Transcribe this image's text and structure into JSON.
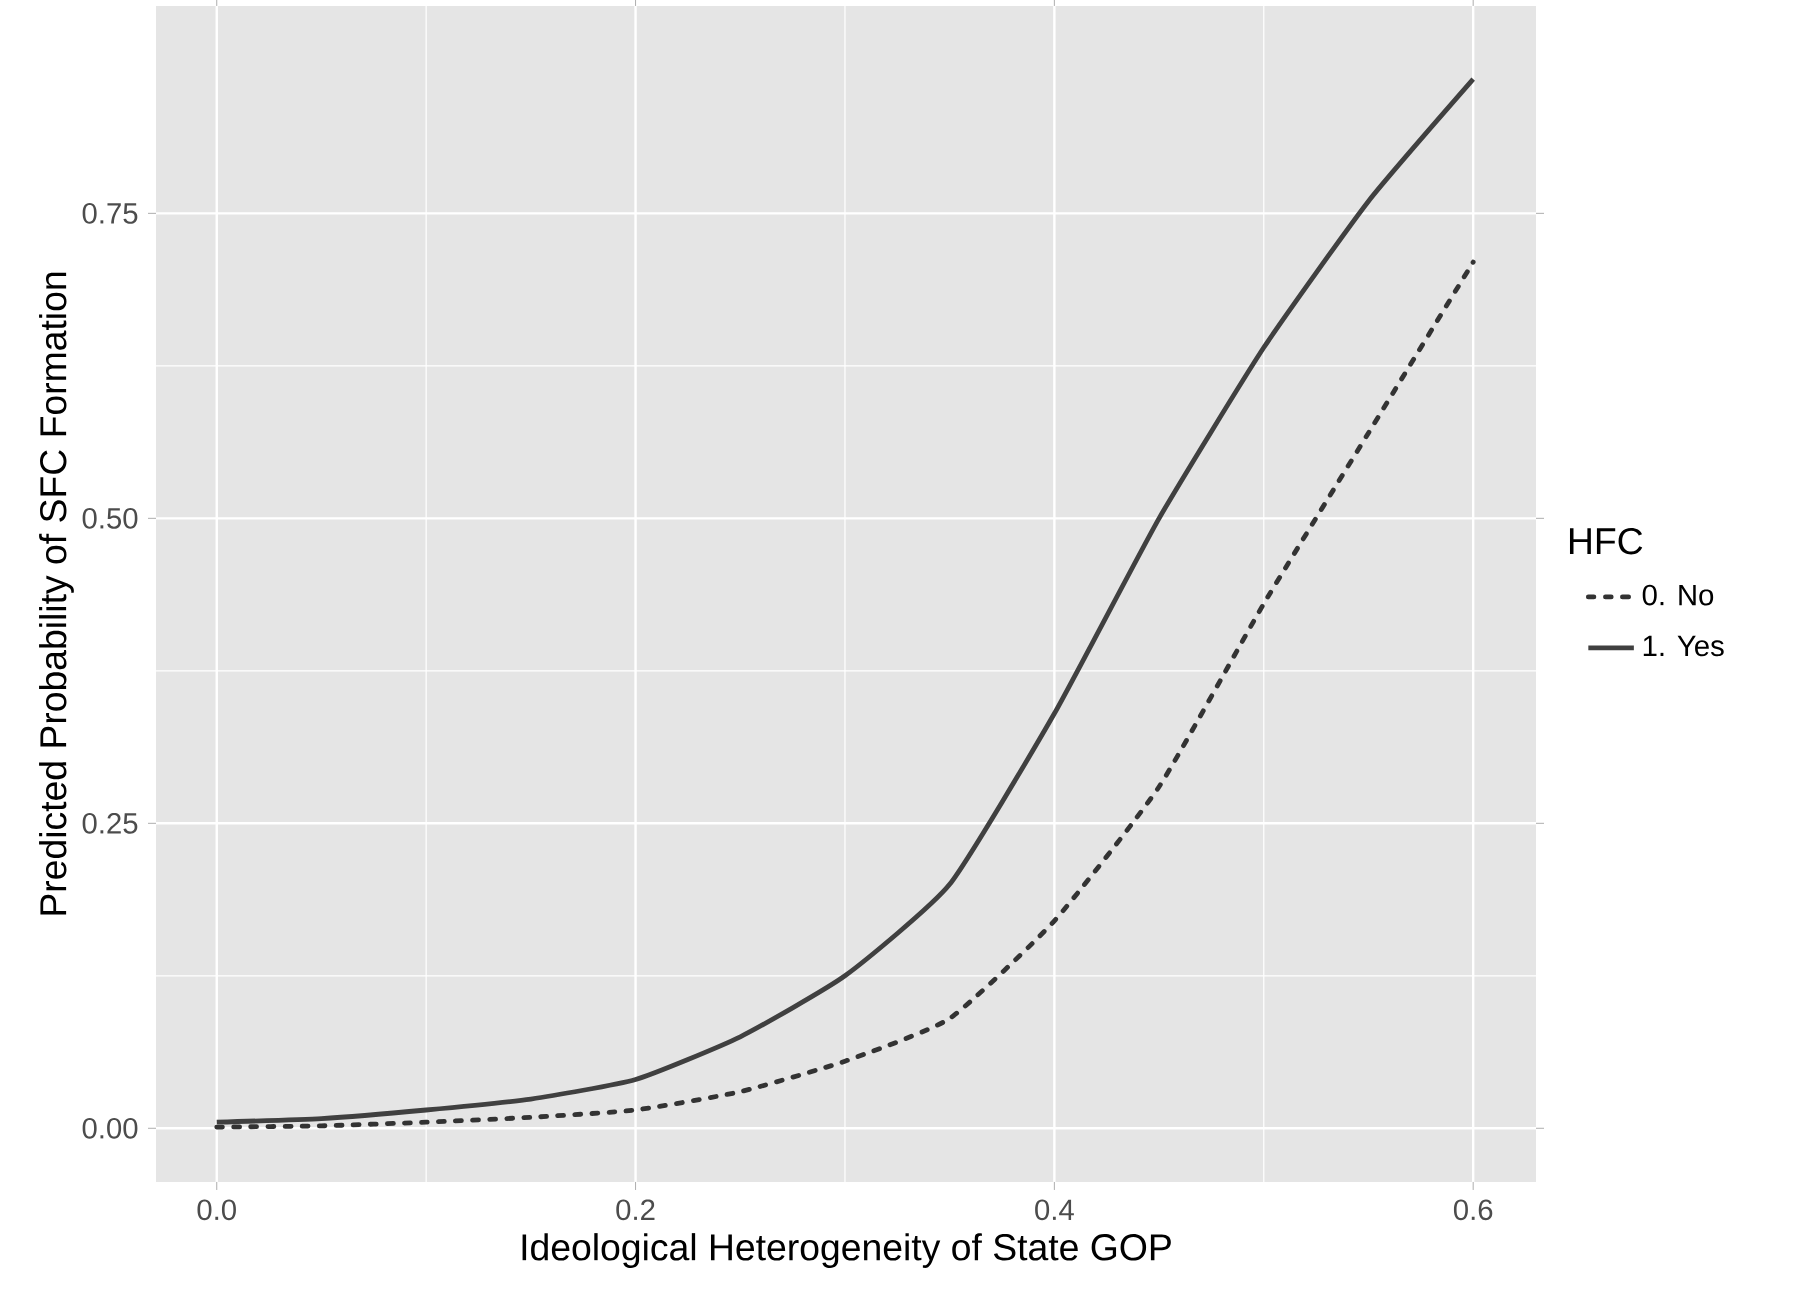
{
  "chart_data": {
    "type": "line",
    "xlabel": "Ideological Heterogeneity of State GOP",
    "ylabel": "Predicted Probability of SFC Formation",
    "legend_title": "HFC",
    "legend": "right",
    "grid": true,
    "x": [
      0,
      0.05,
      0.1,
      0.15,
      0.2,
      0.25,
      0.3,
      0.35,
      0.4,
      0.45,
      0.5,
      0.55,
      0.6
    ],
    "series": [
      {
        "name": "0. No",
        "color": "#333333",
        "line_style": "dotted",
        "values": [
          0.001,
          0.002,
          0.005,
          0.009,
          0.015,
          0.03,
          0.055,
          0.09,
          0.17,
          0.28,
          0.43,
          0.57,
          0.71
        ]
      },
      {
        "name": "1. Yes",
        "color": "#404040",
        "line_style": "solid",
        "values": [
          0.005,
          0.008,
          0.015,
          0.024,
          0.04,
          0.075,
          0.125,
          0.2,
          0.34,
          0.5,
          0.64,
          0.76,
          0.86
        ]
      }
    ],
    "xlim": [
      -0.029,
      0.63
    ],
    "ylim": [
      -0.044,
      0.92
    ],
    "xticks": [
      {
        "value": 0,
        "label": "0.0"
      },
      {
        "value": 0.2,
        "label": "0.2"
      },
      {
        "value": 0.4,
        "label": "0.4"
      },
      {
        "value": 0.6,
        "label": "0.6"
      }
    ],
    "yticks": [
      {
        "value": 0,
        "label": "0.00"
      },
      {
        "value": 0.25,
        "label": "0.25"
      },
      {
        "value": 0.5,
        "label": "0.50"
      },
      {
        "value": 0.75,
        "label": "0.75"
      }
    ]
  }
}
